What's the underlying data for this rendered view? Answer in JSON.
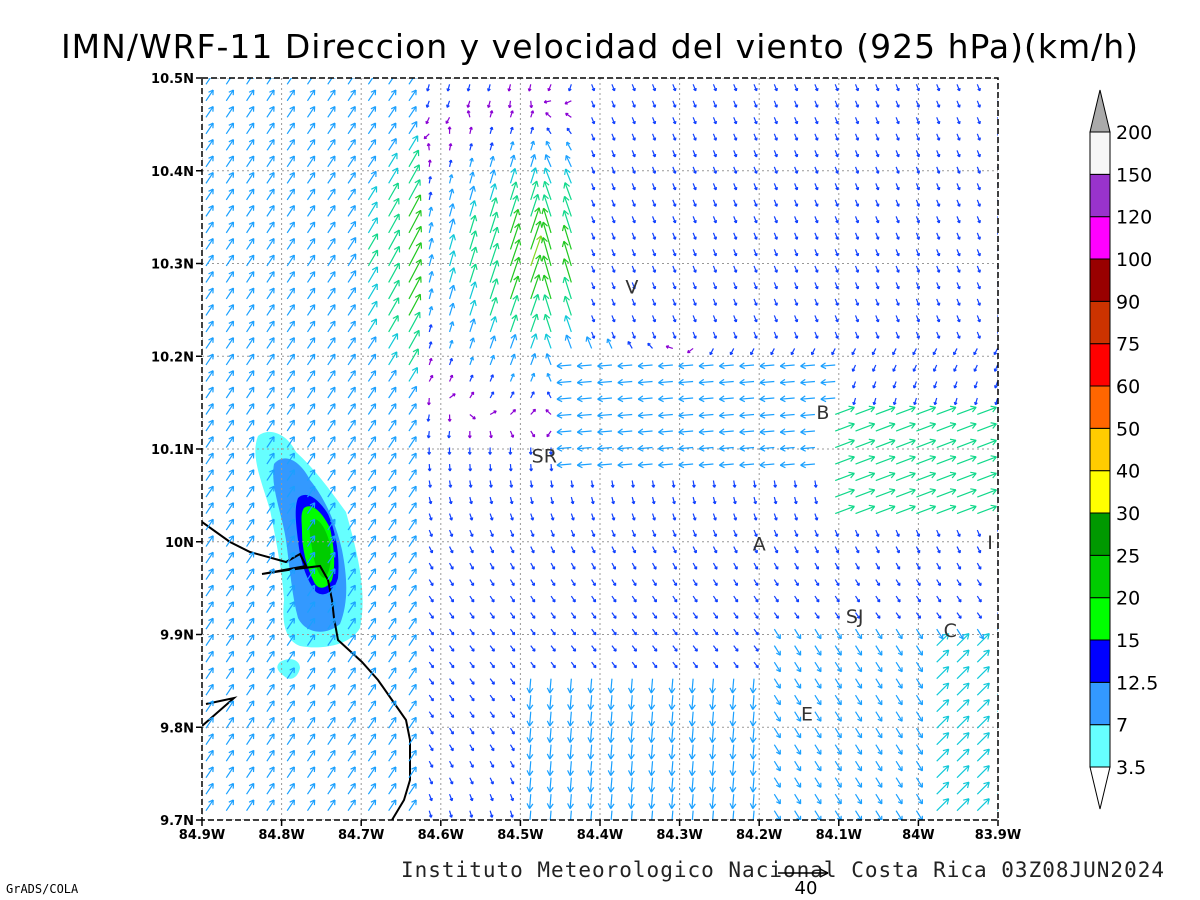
{
  "map": {
    "title": "IMN/WRF-11 Direccion y velocidad del viento (925 hPa)(km/h)",
    "footer": "Instituto Meteorologico Nacional Costa Rica 03Z08JUN2024",
    "credit": "GrADS/COLA",
    "reference_vector": {
      "label": "40",
      "speed": 40
    },
    "lon_range": [
      -84.9,
      -83.9
    ],
    "lat_range": [
      9.7,
      10.5
    ],
    "lon_ticks": [
      {
        "value": -84.9,
        "label": "84.9W"
      },
      {
        "value": -84.8,
        "label": "84.8W"
      },
      {
        "value": -84.7,
        "label": "84.7W"
      },
      {
        "value": -84.6,
        "label": "84.6W"
      },
      {
        "value": -84.5,
        "label": "84.5W"
      },
      {
        "value": -84.4,
        "label": "84.4W"
      },
      {
        "value": -84.3,
        "label": "84.3W"
      },
      {
        "value": -84.2,
        "label": "84.2W"
      },
      {
        "value": -84.1,
        "label": "84.1W"
      },
      {
        "value": -84.0,
        "label": "84W"
      },
      {
        "value": -83.9,
        "label": "83.9W"
      }
    ],
    "lat_ticks": [
      {
        "value": 10.5,
        "label": "10.5N"
      },
      {
        "value": 10.4,
        "label": "10.4N"
      },
      {
        "value": 10.3,
        "label": "10.3N"
      },
      {
        "value": 10.2,
        "label": "10.2N"
      },
      {
        "value": 10.1,
        "label": "10.1N"
      },
      {
        "value": 10.0,
        "label": "10N"
      },
      {
        "value": 9.9,
        "label": "9.9N"
      },
      {
        "value": 9.8,
        "label": "9.8N"
      },
      {
        "value": 9.7,
        "label": "9.7N"
      }
    ],
    "places": [
      {
        "label": "V",
        "lon": -84.36,
        "lat": 10.275
      },
      {
        "label": "SR",
        "lon": -84.47,
        "lat": 10.093
      },
      {
        "label": "B",
        "lon": -84.12,
        "lat": 10.14
      },
      {
        "label": "A",
        "lon": -84.2,
        "lat": 9.998
      },
      {
        "label": "I",
        "lon": -83.91,
        "lat": 10.0
      },
      {
        "label": "SJ",
        "lon": -84.08,
        "lat": 9.92
      },
      {
        "label": "C",
        "lon": -83.96,
        "lat": 9.905
      },
      {
        "label": "E",
        "lon": -84.14,
        "lat": 9.815
      }
    ]
  },
  "colorbar": {
    "levels": [
      "3.5",
      "7",
      "12.5",
      "15",
      "20",
      "25",
      "30",
      "40",
      "50",
      "60",
      "75",
      "90",
      "100",
      "120",
      "150",
      "200"
    ],
    "colors": [
      "#66ffff",
      "#3399ff",
      "#0000ff",
      "#00ff00",
      "#00cc00",
      "#009900",
      "#ffff00",
      "#ffcc00",
      "#ff6600",
      "#ff0000",
      "#cc3300",
      "#990000",
      "#ff00ff",
      "#9933cc",
      "#f7f7f7",
      "#aaaaaa"
    ],
    "low_color": "#ffffff",
    "high_color": "#aaaaaa"
  },
  "speed_colors": [
    {
      "max": 3.5,
      "color": "#8a00d4"
    },
    {
      "max": 7,
      "color": "#1040ff"
    },
    {
      "max": 12.5,
      "color": "#1aa0ff"
    },
    {
      "max": 15,
      "color": "#10c8d8"
    },
    {
      "max": 20,
      "color": "#10d88a"
    },
    {
      "max": 25,
      "color": "#20c820"
    },
    {
      "max": 30,
      "color": "#88d820"
    },
    {
      "max": 40,
      "color": "#e8c020"
    },
    {
      "max": 50,
      "color": "#f08020"
    },
    {
      "max": 999,
      "color": "#e83030"
    }
  ],
  "speed_zones": [
    {
      "label": "3.5",
      "color": "#66ffff"
    },
    {
      "label": "7",
      "color": "#3399ff"
    },
    {
      "label": "12.5",
      "color": "#0000ff"
    },
    {
      "label": "15",
      "color": "#00ff00"
    }
  ]
}
